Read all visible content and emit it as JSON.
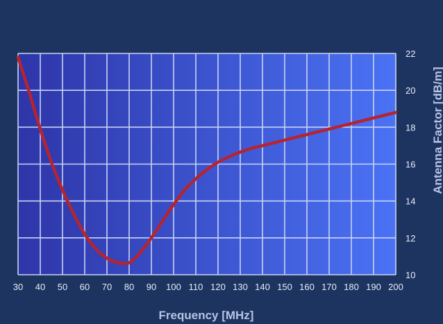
{
  "colors": {
    "page_background": "#1d3461",
    "plot_gradient_left": "#2e35a8",
    "plot_gradient_right": "#4a72f4",
    "grid": "#c9d4f4",
    "curve": "#b52431",
    "tick_text": "#e8ecf6",
    "axis_title": "#b7c3e2"
  },
  "chart_data": {
    "type": "line",
    "title": "",
    "xlabel": "Frequency [MHz]",
    "ylabel": "Antenna Factor [dB/m]",
    "xlim": [
      30,
      200
    ],
    "ylim": [
      10,
      22
    ],
    "x_ticks": [
      "30",
      "40",
      "50",
      "60",
      "70",
      "80",
      "90",
      "100",
      "110",
      "120",
      "130",
      "140",
      "150",
      "160",
      "170",
      "180",
      "190",
      "200"
    ],
    "y_ticks": [
      "10",
      "12",
      "14",
      "16",
      "18",
      "20",
      "22"
    ],
    "y_axis_position": "right",
    "grid": true,
    "legend": "none",
    "series": [
      {
        "x": [
          30,
          35,
          40,
          45,
          50,
          55,
          60,
          65,
          70,
          75,
          80,
          85,
          90,
          95,
          100,
          105,
          110,
          115,
          120,
          125,
          130,
          135,
          140,
          145,
          150,
          155,
          160,
          165,
          170,
          175,
          180,
          185,
          190,
          195,
          200
        ],
        "y": [
          21.8,
          19.9,
          17.9,
          16.1,
          14.6,
          13.3,
          12.2,
          11.4,
          10.9,
          10.65,
          10.65,
          11.2,
          12.0,
          12.9,
          13.8,
          14.6,
          15.2,
          15.7,
          16.1,
          16.4,
          16.65,
          16.85,
          17.0,
          17.15,
          17.3,
          17.45,
          17.6,
          17.75,
          17.9,
          18.05,
          18.2,
          18.35,
          18.5,
          18.65,
          18.8
        ]
      }
    ]
  }
}
